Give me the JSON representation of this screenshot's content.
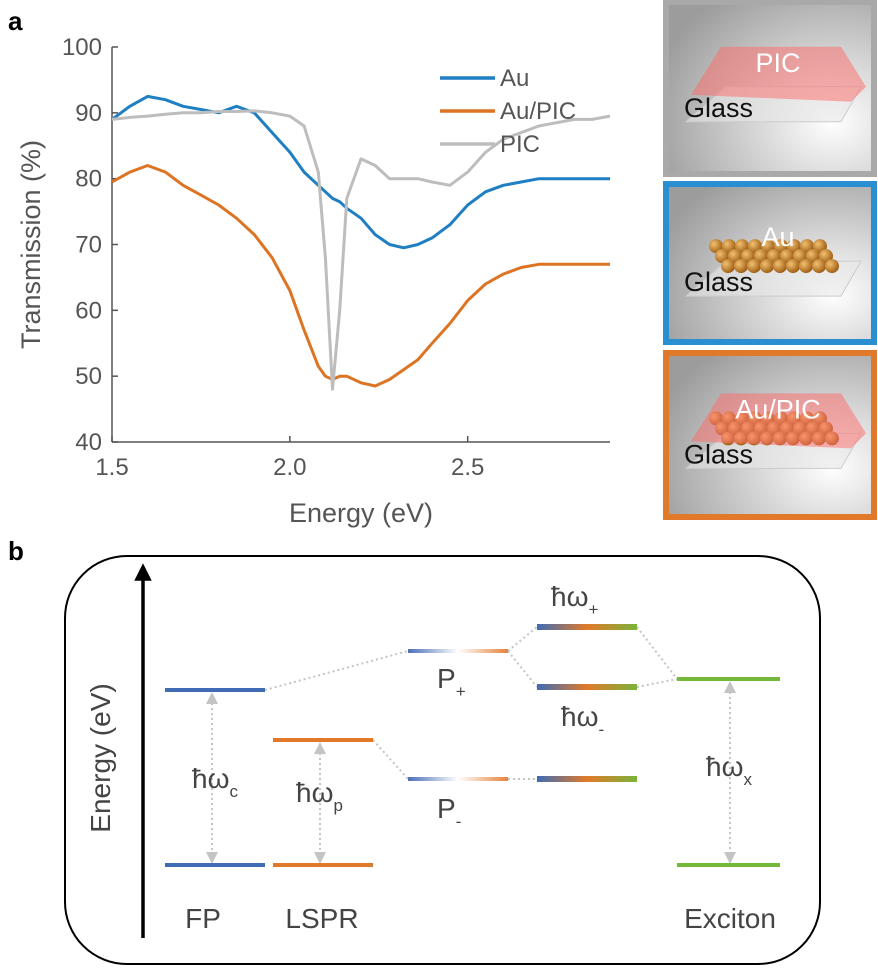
{
  "panel_labels": [
    "a",
    "b"
  ],
  "chart_data": {
    "type": "line",
    "x_label": "Energy (eV)",
    "y_label": "Transmission (%)",
    "x": [
      1.5,
      1.55,
      1.6,
      1.65,
      1.7,
      1.75,
      1.8,
      1.85,
      1.9,
      1.95,
      2.0,
      2.04,
      2.08,
      2.1,
      2.12,
      2.14,
      2.16,
      2.2,
      2.24,
      2.28,
      2.32,
      2.36,
      2.4,
      2.45,
      2.5,
      2.55,
      2.6,
      2.65,
      2.7,
      2.75,
      2.8,
      2.85,
      2.9
    ],
    "series": [
      {
        "name": "Au",
        "color": "#1f7fc2",
        "values": [
          89,
          91,
          92.5,
          92,
          91,
          90.5,
          90,
          91,
          90,
          87,
          84,
          81,
          79,
          78,
          77,
          76.5,
          75.5,
          74,
          71.5,
          70,
          69.5,
          70,
          71,
          73,
          76,
          78,
          79,
          79.5,
          80,
          80,
          80,
          80,
          80
        ]
      },
      {
        "name": "Au/PIC",
        "color": "#dd7423",
        "values": [
          79.5,
          81,
          82,
          81,
          79,
          77.5,
          76,
          74,
          71.5,
          68,
          63,
          57,
          51.5,
          50,
          49.5,
          50,
          50,
          49,
          48.5,
          49.5,
          51,
          52.5,
          55,
          58,
          61.5,
          64,
          65.5,
          66.5,
          67,
          67,
          67,
          67,
          67
        ]
      },
      {
        "name": "PIC",
        "color": "#bdbdbd",
        "values": [
          89,
          89.3,
          89.5,
          89.8,
          90,
          90,
          90.2,
          90.2,
          90.3,
          90,
          89.5,
          88,
          81,
          68,
          48,
          60,
          77,
          83,
          82,
          80,
          80,
          80,
          79.5,
          79,
          81,
          84,
          86,
          87,
          88,
          88.5,
          89,
          89,
          89.5
        ]
      }
    ],
    "xlim": [
      1.5,
      2.9
    ],
    "ylim": [
      40,
      100
    ],
    "xticks": [
      1.5,
      {
        "value": 2,
        "label": "2.0"
      },
      2.5
    ],
    "yticks": [
      40,
      50,
      60,
      70,
      80,
      90,
      100
    ],
    "legend": "upper right"
  },
  "samples": [
    {
      "layer": "PIC",
      "substrate": "Glass",
      "color": "#a9a9a9"
    },
    {
      "layer": "Au",
      "substrate": "Glass",
      "color": "#2a8fd0"
    },
    {
      "layer": "Au/PIC",
      "substrate": "Glass",
      "color": "#e07a2a"
    }
  ],
  "diagram": {
    "y_axis_label": "Energy (eV)",
    "columns": [
      "FP",
      "LSPR",
      "Exciton"
    ],
    "energies": [
      {
        "symbol": "ħω",
        "sub": "c"
      },
      {
        "symbol": "ħω",
        "sub": "p"
      },
      {
        "symbol": "ħω",
        "sub": "x"
      },
      {
        "symbol": "ħω",
        "sub": "+"
      },
      {
        "symbol": "ħω",
        "sub": "-"
      }
    ],
    "polaritons": [
      {
        "symbol": "P",
        "sub": "+"
      },
      {
        "symbol": "P",
        "sub": "-"
      }
    ]
  }
}
